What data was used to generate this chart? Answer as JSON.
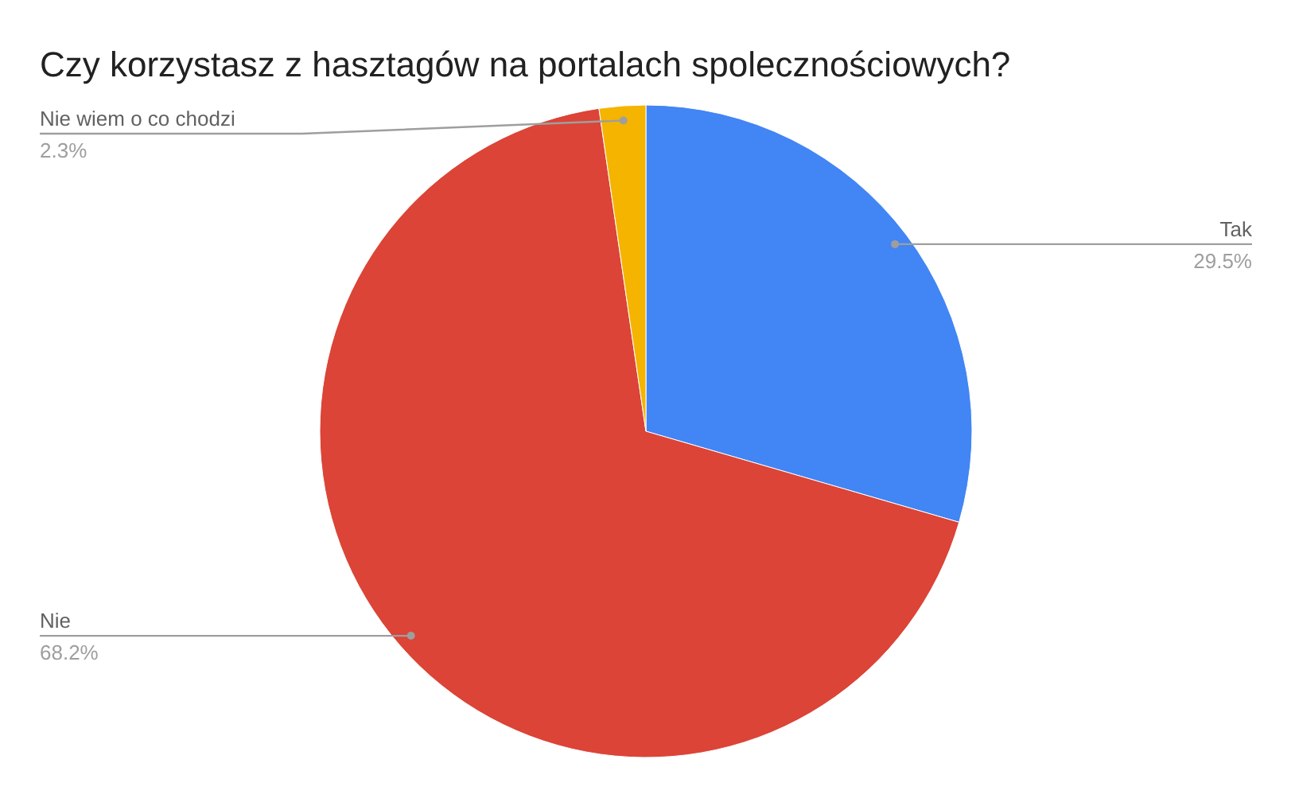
{
  "chart_data": {
    "type": "pie",
    "title": "Czy korzystasz z hasztagów na portalach spolecznościowych?",
    "categories": [
      "Tak",
      "Nie",
      "Nie wiem o co chodzi"
    ],
    "values": [
      29.5,
      68.2,
      2.3
    ],
    "colors": [
      "#4285f4",
      "#db4437",
      "#f4b400"
    ],
    "value_labels": [
      "29.5%",
      "68.2%",
      "2.3%"
    ]
  }
}
